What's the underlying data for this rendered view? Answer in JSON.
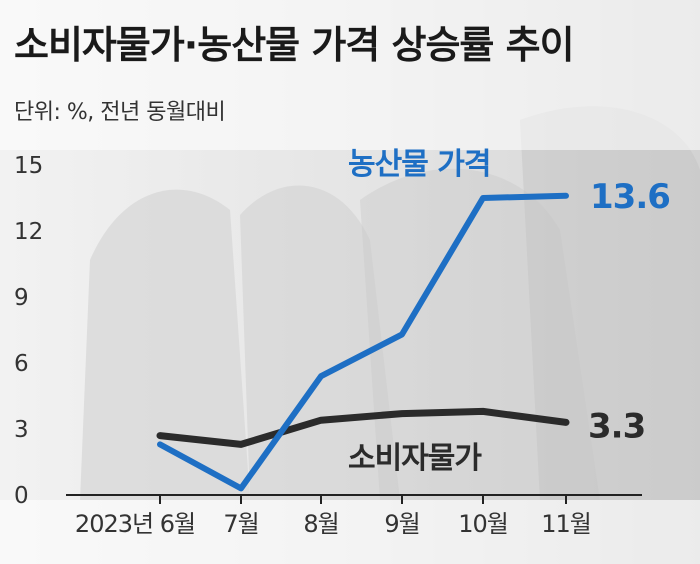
{
  "chart_data": {
    "type": "line",
    "title": "소비자물가·농산물 가격 상승률 추이",
    "unit_label": "단위: %, 전년 동월대비",
    "categories": [
      "2023년 6월",
      "7월",
      "8월",
      "9월",
      "10월",
      "11월"
    ],
    "series": [
      {
        "name": "농산물 가격",
        "values": [
          2.3,
          0.3,
          5.4,
          7.3,
          13.5,
          13.6
        ],
        "color": "#1e6fc4",
        "end_label": "13.6"
      },
      {
        "name": "소비자물가",
        "values": [
          2.7,
          2.3,
          3.4,
          3.7,
          3.8,
          3.3
        ],
        "color": "#2b2b2b",
        "end_label": "3.3"
      }
    ],
    "yticks": [
      "15",
      "12",
      "9",
      "6",
      "3",
      "0"
    ],
    "ylim": [
      0,
      15
    ],
    "grid": false
  }
}
